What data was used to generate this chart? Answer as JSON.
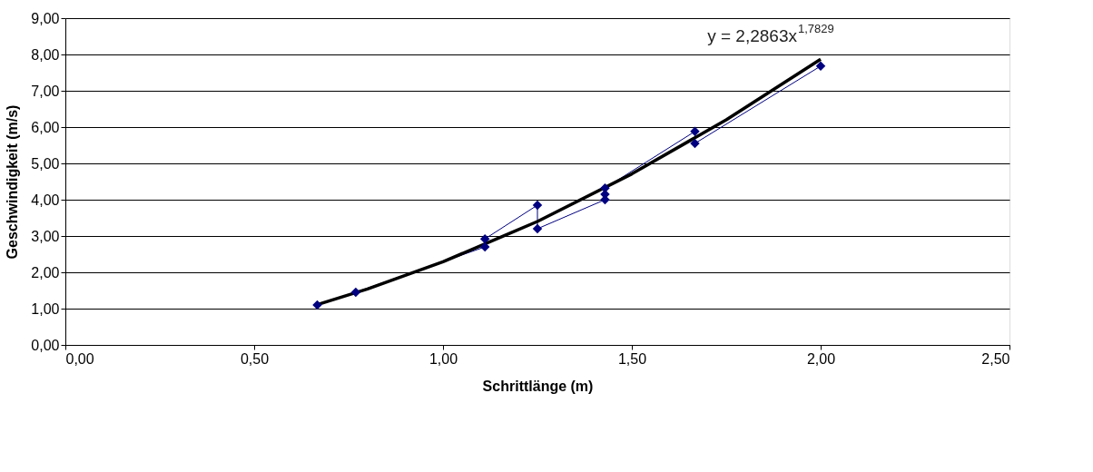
{
  "chart_data": {
    "type": "line",
    "xlabel": "Schrittlänge (m)",
    "ylabel": "Geschwindigkeit (m/s)",
    "annotations": [
      "y = 2,2863x$^{1,7829}$"
    ],
    "series": [
      {
        "color": "#000080",
        "marker": "diamond",
        "x": [
          0.667,
          0.769,
          1.111,
          1.111,
          1.25,
          1.25,
          1.429,
          1.429,
          1.429,
          1.667,
          1.667,
          2.0
        ],
        "values": [
          1.1,
          1.45,
          2.7,
          2.92,
          3.85,
          3.2,
          4.0,
          4.15,
          4.32,
          5.88,
          5.55,
          7.68
        ]
      },
      {
        "color": "#000000",
        "marker": "none",
        "x": [
          0.667,
          0.8,
          1.0,
          1.25,
          1.5,
          1.75,
          2.0
        ],
        "values": [
          1.11,
          1.54,
          2.29,
          3.4,
          4.71,
          6.2,
          7.87
        ]
      }
    ],
    "xlim": [
      0,
      2.5
    ],
    "xticks": [
      {
        "value": 0,
        "label": "0,00"
      },
      {
        "value": 0.5,
        "label": "0,50"
      },
      {
        "value": 1,
        "label": "1,00"
      },
      {
        "value": 1.5,
        "label": "1,50"
      },
      {
        "value": 2,
        "label": "2,00"
      },
      {
        "value": 2.5,
        "label": "2,50"
      }
    ],
    "ylim": [
      0,
      9
    ],
    "yticks": [
      {
        "value": 0,
        "label": "0,00"
      },
      {
        "value": 1,
        "label": "1,00"
      },
      {
        "value": 2,
        "label": "2,00"
      },
      {
        "value": 3,
        "label": "3,00"
      },
      {
        "value": 4,
        "label": "4,00"
      },
      {
        "value": 5,
        "label": "5,00"
      },
      {
        "value": 6,
        "label": "6,00"
      },
      {
        "value": 7,
        "label": "7,00"
      },
      {
        "value": 8,
        "label": "8,00"
      },
      {
        "value": 9,
        "label": "9,00"
      }
    ],
    "grid": "y",
    "legend": false
  }
}
